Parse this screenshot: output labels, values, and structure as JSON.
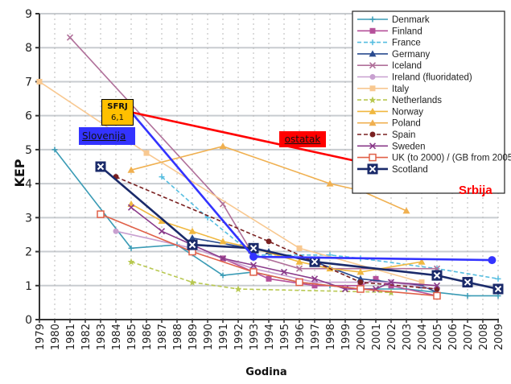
{
  "chart_data": {
    "type": "line",
    "title": "",
    "xlabel": "Godina",
    "ylabel": "KEP",
    "xlim": [
      1979,
      2009
    ],
    "ylim": [
      0,
      9
    ],
    "yticks": [
      "0",
      "1",
      "2",
      "3",
      "4",
      "5",
      "6",
      "7",
      "8",
      "9"
    ],
    "xticks": [
      "1979",
      "1980",
      "1981",
      "1982",
      "1983",
      "1984",
      "1985",
      "1986",
      "1987",
      "1988",
      "1989",
      "1990",
      "1991",
      "1992",
      "1993",
      "1994",
      "1995",
      "1996",
      "1997",
      "1998",
      "1999",
      "2000",
      "2001",
      "2002",
      "2003",
      "2004",
      "2005",
      "2006",
      "2007",
      "2008",
      "2009"
    ],
    "grid": true,
    "legend_position": "top-right",
    "series": [
      {
        "name": "Denmark",
        "color": "#3a9bb5",
        "marker": "plus",
        "dash": "solid",
        "points": [
          [
            1980,
            5.0
          ],
          [
            1985,
            2.1
          ],
          [
            1988,
            2.2
          ],
          [
            1991,
            1.3
          ],
          [
            1993,
            1.4
          ],
          [
            1996,
            1.1
          ],
          [
            1998,
            1.0
          ],
          [
            2000,
            0.9
          ],
          [
            2003,
            0.9
          ],
          [
            2005,
            0.8
          ],
          [
            2007,
            0.7
          ],
          [
            2009,
            0.7
          ]
        ]
      },
      {
        "name": "Finland",
        "color": "#b5509a",
        "marker": "square",
        "dash": "solid",
        "points": [
          [
            1991,
            1.8
          ],
          [
            1994,
            1.2
          ],
          [
            1997,
            1.0
          ],
          [
            2000,
            1.0
          ],
          [
            2001,
            1.2
          ],
          [
            2002,
            1.0
          ],
          [
            2005,
            0.7
          ]
        ]
      },
      {
        "name": "France",
        "color": "#55bde0",
        "marker": "plus",
        "dash": "dashed",
        "points": [
          [
            1987,
            4.2
          ],
          [
            1990,
            3.0
          ],
          [
            1993,
            1.9
          ],
          [
            1998,
            1.9
          ],
          [
            2000,
            1.8
          ],
          [
            2005,
            1.5
          ],
          [
            2009,
            1.2
          ]
        ]
      },
      {
        "name": "Germany",
        "color": "#2a4b8f",
        "marker": "triangle",
        "dash": "solid",
        "points": [
          [
            1989,
            2.4
          ],
          [
            1994,
            2.0
          ],
          [
            1997,
            1.7
          ],
          [
            2000,
            1.2
          ],
          [
            2004,
            1.0
          ],
          [
            2005,
            0.8
          ]
        ]
      },
      {
        "name": "Iceland",
        "color": "#b0709a",
        "marker": "x",
        "dash": "solid",
        "points": [
          [
            1981,
            8.3
          ],
          [
            1991,
            3.4
          ],
          [
            1993,
            1.9
          ],
          [
            1996,
            1.5
          ],
          [
            2005,
            1.5
          ]
        ]
      },
      {
        "name": "Ireland (fluoridated)",
        "color": "#c8a0d0",
        "marker": "circle",
        "dash": "solid",
        "points": [
          [
            1984,
            2.6
          ],
          [
            1989,
            2.1
          ],
          [
            1993,
            1.5
          ],
          [
            1997,
            1.1
          ],
          [
            2002,
            1.1
          ],
          [
            2005,
            0.9
          ]
        ]
      },
      {
        "name": "Italy",
        "color": "#f8c890",
        "marker": "square",
        "dash": "solid",
        "points": [
          [
            1979,
            7.0
          ],
          [
            1986,
            4.9
          ],
          [
            1996,
            2.1
          ],
          [
            2004,
            1.1
          ]
        ]
      },
      {
        "name": "Netherlands",
        "color": "#b8c850",
        "marker": "star",
        "dash": "dashed",
        "points": [
          [
            1985,
            1.7
          ],
          [
            1989,
            1.1
          ],
          [
            1992,
            0.9
          ],
          [
            2002,
            0.8
          ]
        ]
      },
      {
        "name": "Norway",
        "color": "#f0b840",
        "marker": "triangle",
        "dash": "solid",
        "points": [
          [
            1985,
            3.4
          ],
          [
            1987,
            2.9
          ],
          [
            1989,
            2.6
          ],
          [
            1991,
            2.3
          ],
          [
            1993,
            2.1
          ],
          [
            1996,
            1.7
          ],
          [
            1998,
            1.5
          ],
          [
            2000,
            1.4
          ],
          [
            2004,
            1.7
          ]
        ]
      },
      {
        "name": "Poland",
        "color": "#f0b050",
        "marker": "triangle",
        "dash": "solid",
        "points": [
          [
            1985,
            4.4
          ],
          [
            1991,
            5.1
          ],
          [
            1998,
            4.0
          ],
          [
            2000,
            3.8
          ],
          [
            2003,
            3.2
          ]
        ]
      },
      {
        "name": "Spain",
        "color": "#7a2020",
        "marker": "circle",
        "dash": "dashed",
        "points": [
          [
            1984,
            4.2
          ],
          [
            1994,
            2.3
          ],
          [
            2000,
            1.1
          ],
          [
            2005,
            0.9
          ]
        ]
      },
      {
        "name": "Sweden",
        "color": "#8a3a8a",
        "marker": "x",
        "dash": "solid",
        "points": [
          [
            1985,
            3.3
          ],
          [
            1987,
            2.6
          ],
          [
            1991,
            1.8
          ],
          [
            1993,
            1.6
          ],
          [
            1995,
            1.4
          ],
          [
            1997,
            1.2
          ],
          [
            1999,
            0.9
          ],
          [
            2001,
            0.9
          ],
          [
            2002,
            1.1
          ],
          [
            2005,
            1.0
          ]
        ]
      },
      {
        "name": "UK (to 2000) / (GB from 2005)*",
        "color": "#e06048",
        "marker": "square-open",
        "dash": "solid",
        "points": [
          [
            1983,
            3.1
          ],
          [
            1989,
            2.0
          ],
          [
            1993,
            1.4
          ],
          [
            1996,
            1.1
          ],
          [
            2000,
            0.9
          ],
          [
            2005,
            0.7
          ]
        ]
      },
      {
        "name": "Scotland",
        "color": "#1a2a6a",
        "marker": "box-x",
        "dash": "solid",
        "points": [
          [
            1983,
            4.5
          ],
          [
            1989,
            2.2
          ],
          [
            1993,
            2.1
          ],
          [
            1997,
            1.7
          ],
          [
            2005,
            1.3
          ],
          [
            2007,
            1.1
          ],
          [
            2009,
            0.9
          ]
        ]
      }
    ],
    "overlays": [
      {
        "name": "Slovenija",
        "color": "#3333ff",
        "points": [
          [
            1985,
            6.1
          ],
          [
            1993,
            1.85
          ],
          [
            2008.6,
            1.75
          ]
        ]
      },
      {
        "name": "ostatak",
        "color": "#ff0000",
        "points": [
          [
            1985,
            6.1
          ],
          [
            2008.6,
            3.8
          ]
        ]
      }
    ],
    "annotations": {
      "sfrj_title": "SFRJ",
      "sfrj_value": "6,1",
      "slovenija": "Slovenija",
      "ostatak": "ostatak",
      "srbija": "Srbija"
    }
  }
}
